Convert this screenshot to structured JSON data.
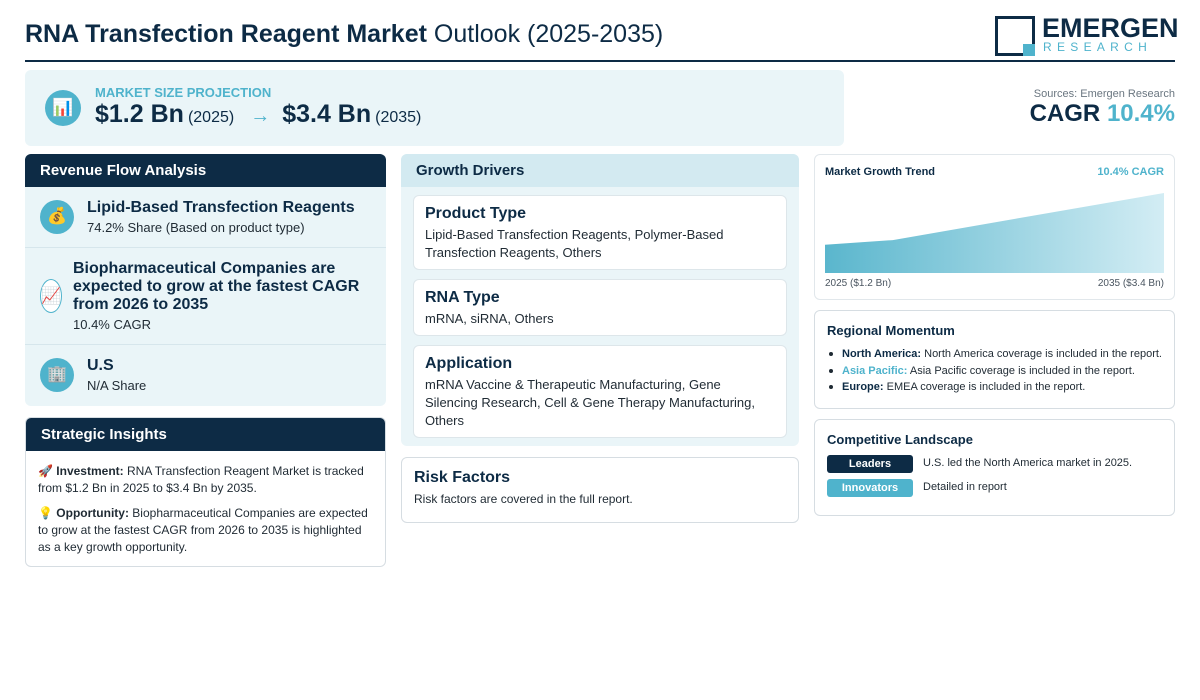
{
  "header": {
    "title_bold": "RNA Transfection Reagent Market",
    "title_rest": "Outlook (2025-2035)",
    "logo_name": "EMERGEN",
    "logo_sub": "RESEARCH"
  },
  "market_size": {
    "label": "MARKET SIZE PROJECTION",
    "start_value": "$1.2 Bn",
    "start_year": "(2025)",
    "arrow": "→",
    "end_value": "$3.4 Bn",
    "end_year": "(2035)",
    "icon": "bar-chart-icon"
  },
  "sources": "Sources: Emergen Research",
  "cagr": {
    "label": "CAGR",
    "value": "10.4%"
  },
  "revenue_flow": {
    "title": "Revenue Flow Analysis",
    "items": [
      {
        "icon": "money-bag-icon",
        "title": "Lipid-Based Transfection Reagents",
        "sub": "74.2% Share (Based on product type)"
      },
      {
        "icon": "chart-up-icon",
        "title": "Biopharmaceutical Companies are expected to grow at the fastest CAGR from 2026 to 2035",
        "sub": "10.4% CAGR"
      },
      {
        "icon": "building-icon",
        "title": "U.S",
        "sub": "N/A Share"
      }
    ]
  },
  "strategic_insights": {
    "title": "Strategic Insights",
    "items": [
      {
        "icon": "rocket-icon",
        "label": "Investment:",
        "text": "RNA Transfection Reagent Market is tracked from $1.2 Bn in 2025 to $3.4 Bn by 2035."
      },
      {
        "icon": "lightbulb-icon",
        "label": "Opportunity:",
        "text": "Biopharmaceutical Companies are expected to grow at the fastest CAGR from 2026 to 2035 is highlighted as a key growth opportunity."
      }
    ]
  },
  "growth_drivers": {
    "title": "Growth Drivers",
    "cards": [
      {
        "title": "Product Type",
        "text": "Lipid-Based Transfection Reagents, Polymer-Based Transfection Reagents, Others"
      },
      {
        "title": "RNA Type",
        "text": "mRNA, siRNA, Others"
      },
      {
        "title": "Application",
        "text": "mRNA Vaccine & Therapeutic Manufacturing, Gene Silencing Research, Cell & Gene Therapy Manufacturing, Others"
      }
    ]
  },
  "risk_factors": {
    "title": "Risk Factors",
    "text": "Risk factors are covered in the full report."
  },
  "growth_trend": {
    "title": "Market Growth Trend",
    "cagr_label": "10.4% CAGR",
    "start_label": "2025 ($1.2 Bn)",
    "end_label": "2035 ($3.4 Bn)"
  },
  "chart_data": {
    "type": "area",
    "x": [
      2025,
      2027,
      2031,
      2035
    ],
    "values": [
      1.2,
      1.4,
      2.4,
      3.4
    ],
    "title": "Market Growth Trend",
    "xlabel": "",
    "ylabel": "",
    "ylim": [
      0,
      3.4
    ],
    "grid": false,
    "legend": "none",
    "color": "#4fb3cc"
  },
  "regional": {
    "title": "Regional Momentum",
    "items": [
      {
        "name": "North America:",
        "text": "North America coverage is included in the report."
      },
      {
        "name": "Asia Pacific:",
        "text": "Asia Pacific coverage is included in the report."
      },
      {
        "name": "Europe:",
        "text": "EMEA coverage is included in the report."
      }
    ]
  },
  "competitive": {
    "title": "Competitive Landscape",
    "rows": [
      {
        "badge": "Leaders",
        "color": "#0d2b45",
        "text": "U.S. led the North America market in 2025."
      },
      {
        "badge": "Innovators",
        "color": "#4fb3cc",
        "text": "Detailed in report"
      }
    ]
  },
  "colors": {
    "navy": "#0d2b45",
    "accent": "#4fb3cc",
    "panel": "#eaf5f8"
  }
}
